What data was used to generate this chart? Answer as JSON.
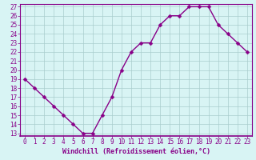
{
  "x": [
    0,
    1,
    2,
    3,
    4,
    5,
    6,
    7,
    8,
    9,
    10,
    11,
    12,
    13,
    14,
    15,
    16,
    17,
    18,
    19,
    20,
    21,
    22,
    23
  ],
  "y": [
    19,
    18,
    17,
    16,
    15,
    14,
    13,
    13,
    15,
    17,
    20,
    22,
    23,
    23,
    25,
    26,
    26,
    27,
    27,
    27,
    25,
    24,
    23,
    22
  ],
  "line_color": "#880088",
  "marker_color": "#880088",
  "bg_color": "#D8F4F4",
  "grid_color": "#AACCCC",
  "axis_color": "#880088",
  "border_color": "#880088",
  "xlabel": "Windchill (Refroidissement éolien,°C)",
  "ylim_min": 13,
  "ylim_max": 27,
  "yticks": [
    13,
    14,
    15,
    16,
    17,
    18,
    19,
    20,
    21,
    22,
    23,
    24,
    25,
    26,
    27
  ],
  "xticks": [
    0,
    1,
    2,
    3,
    4,
    5,
    6,
    7,
    8,
    9,
    10,
    11,
    12,
    13,
    14,
    15,
    16,
    17,
    18,
    19,
    20,
    21,
    22,
    23
  ],
  "xlabel_fontsize": 6.0,
  "tick_fontsize": 5.5,
  "line_width": 1.0,
  "marker_size": 2.5
}
